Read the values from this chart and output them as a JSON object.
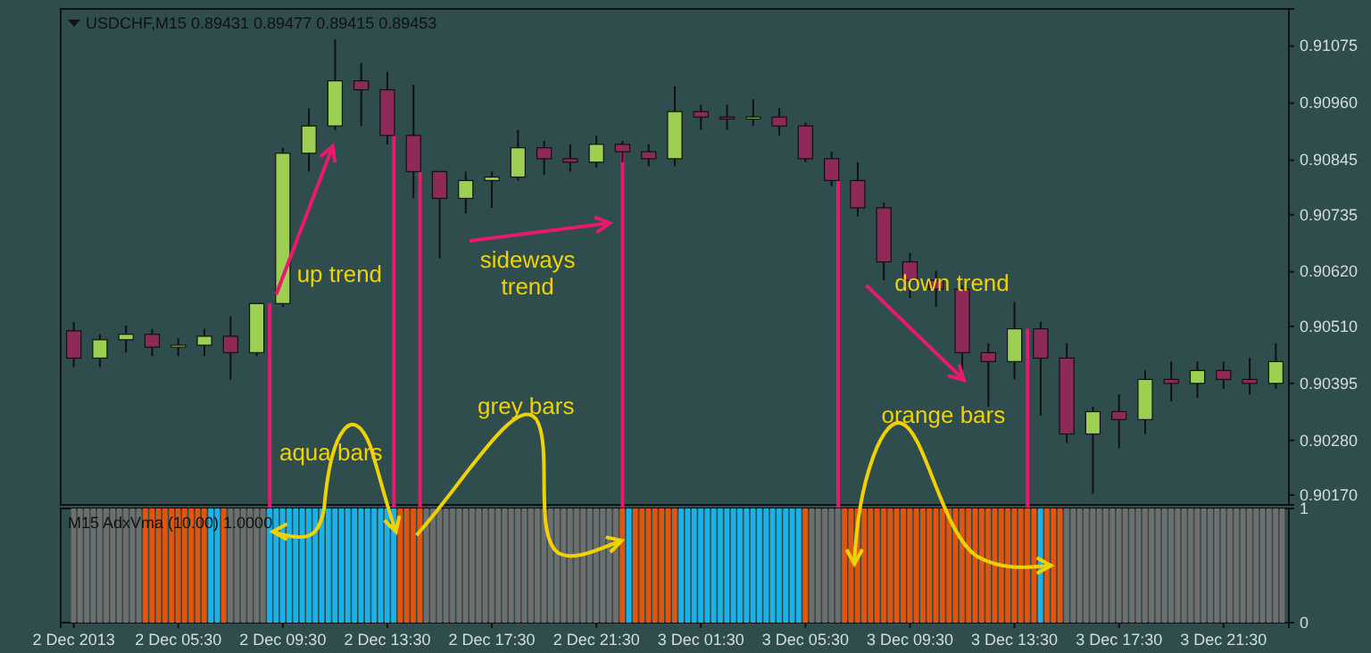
{
  "chart_data": [
    {
      "type": "candlestick",
      "title": "USDCHF,M15  0.89431 0.89477 0.89415 0.89453",
      "x": [
        "2013-12-02T01:30",
        "2013-12-02T02:30",
        "2013-12-02T03:30",
        "2013-12-02T04:30",
        "2013-12-02T05:30",
        "2013-12-02T06:30",
        "2013-12-02T07:30",
        "2013-12-02T08:30",
        "2013-12-02T09:30",
        "2013-12-02T10:30",
        "2013-12-02T11:30",
        "2013-12-02T12:30",
        "2013-12-02T13:30",
        "2013-12-02T14:30",
        "2013-12-02T15:30",
        "2013-12-02T16:30",
        "2013-12-02T17:30",
        "2013-12-02T18:30",
        "2013-12-02T19:30",
        "2013-12-02T20:30",
        "2013-12-02T21:30",
        "2013-12-02T22:30",
        "2013-12-02T23:30",
        "2013-12-03T00:30",
        "2013-12-03T01:30",
        "2013-12-03T02:30",
        "2013-12-03T03:30",
        "2013-12-03T04:30",
        "2013-12-03T05:30",
        "2013-12-03T06:30",
        "2013-12-03T07:30",
        "2013-12-03T08:30",
        "2013-12-03T09:30",
        "2013-12-03T10:30",
        "2013-12-03T11:30",
        "2013-12-03T12:30",
        "2013-12-03T13:30",
        "2013-12-03T14:30",
        "2013-12-03T15:30",
        "2013-12-03T16:30",
        "2013-12-03T17:30",
        "2013-12-03T18:30",
        "2013-12-03T19:30",
        "2013-12-03T20:30",
        "2013-12-03T21:30",
        "2013-12-03T22:30",
        "2013-12-03T23:30"
      ],
      "ohlc": [
        [
          0.90501,
          0.90519,
          0.90428,
          0.90446
        ],
        [
          0.90446,
          0.90494,
          0.90428,
          0.90483
        ],
        [
          0.90483,
          0.90512,
          0.90457,
          0.90494
        ],
        [
          0.90494,
          0.90505,
          0.9045,
          0.90468
        ],
        [
          0.90468,
          0.90486,
          0.9045,
          0.90472
        ],
        [
          0.90472,
          0.90505,
          0.9045,
          0.9049
        ],
        [
          0.9049,
          0.9053,
          0.90403,
          0.90457
        ],
        [
          0.90457,
          0.90556,
          0.9045,
          0.90556
        ],
        [
          0.90556,
          0.9087,
          0.90549,
          0.90859
        ],
        [
          0.90859,
          0.9095,
          0.90822,
          0.90914
        ],
        [
          0.90914,
          0.91089,
          0.90906,
          0.91005
        ],
        [
          0.91005,
          0.91041,
          0.90914,
          0.90987
        ],
        [
          0.90987,
          0.91023,
          0.90877,
          0.90895
        ],
        [
          0.90895,
          0.90997,
          0.90768,
          0.90822
        ],
        [
          0.90822,
          0.90822,
          0.90647,
          0.90768
        ],
        [
          0.90768,
          0.90822,
          0.90738,
          0.90804
        ],
        [
          0.90804,
          0.90822,
          0.90749,
          0.90811
        ],
        [
          0.90811,
          0.90906,
          0.90804,
          0.9087
        ],
        [
          0.9087,
          0.90884,
          0.90815,
          0.90848
        ],
        [
          0.90848,
          0.90877,
          0.90822,
          0.90841
        ],
        [
          0.90841,
          0.90895,
          0.9083,
          0.90877
        ],
        [
          0.90877,
          0.90884,
          0.90841,
          0.90862
        ],
        [
          0.90862,
          0.90877,
          0.90833,
          0.90848
        ],
        [
          0.90848,
          0.90994,
          0.90833,
          0.90943
        ],
        [
          0.90943,
          0.90957,
          0.90906,
          0.90932
        ],
        [
          0.90932,
          0.90957,
          0.90906,
          0.90928
        ],
        [
          0.90928,
          0.90968,
          0.90914,
          0.90932
        ],
        [
          0.90932,
          0.9095,
          0.90895,
          0.90914
        ],
        [
          0.90914,
          0.90921,
          0.90841,
          0.90848
        ],
        [
          0.90848,
          0.90862,
          0.90793,
          0.90804
        ],
        [
          0.90804,
          0.90841,
          0.90731,
          0.90749
        ],
        [
          0.90749,
          0.9076,
          0.90603,
          0.9064
        ],
        [
          0.9064,
          0.90658,
          0.90567,
          0.90603
        ],
        [
          0.90603,
          0.90622,
          0.90549,
          0.90585
        ],
        [
          0.90585,
          0.90592,
          0.90421,
          0.90457
        ],
        [
          0.90457,
          0.90476,
          0.90348,
          0.90439
        ],
        [
          0.90439,
          0.90559,
          0.90403,
          0.90505
        ],
        [
          0.90505,
          0.90519,
          0.9033,
          0.90446
        ],
        [
          0.90446,
          0.90476,
          0.90275,
          0.90293
        ],
        [
          0.90293,
          0.90348,
          0.90173,
          0.90338
        ],
        [
          0.90338,
          0.90373,
          0.90264,
          0.90322
        ],
        [
          0.90322,
          0.90421,
          0.90293,
          0.90403
        ],
        [
          0.90403,
          0.90439,
          0.90359,
          0.90395
        ],
        [
          0.90395,
          0.90439,
          0.90366,
          0.90421
        ],
        [
          0.90421,
          0.90439,
          0.90384,
          0.90403
        ],
        [
          0.90403,
          0.90446,
          0.90373,
          0.90395
        ],
        [
          0.90395,
          0.90476,
          0.90384,
          0.90439
        ]
      ],
      "xlim": [
        "2013-12-02T01:00",
        "2013-12-04T00:00"
      ],
      "ylim": [
        0.9015,
        0.9115
      ],
      "yticks": [
        {
          "value": 0.91075,
          "label": "0.91075"
        },
        {
          "value": 0.9096,
          "label": "0.90960"
        },
        {
          "value": 0.90845,
          "label": "0.90845"
        },
        {
          "value": 0.90735,
          "label": "0.90735"
        },
        {
          "value": 0.9062,
          "label": "0.90620"
        },
        {
          "value": 0.9051,
          "label": "0.90510"
        },
        {
          "value": 0.90395,
          "label": "0.90395"
        },
        {
          "value": 0.9028,
          "label": "0.90280"
        },
        {
          "value": 0.9017,
          "label": "0.90170"
        }
      ],
      "tick_labels": "y",
      "annotations": [
        "up trend",
        "sideways trend",
        "down trend",
        "aqua bars",
        "grey bars",
        "orange bars"
      ],
      "ref_lines": [
        {
          "axis": "x",
          "value": "2013-12-02T09:00",
          "color": "#e8196e"
        },
        {
          "axis": "x",
          "value": "2013-12-02T13:45",
          "color": "#e8196e"
        },
        {
          "axis": "x",
          "value": "2013-12-02T14:45",
          "color": "#e8196e"
        },
        {
          "axis": "x",
          "value": "2013-12-02T22:30",
          "color": "#e8196e"
        },
        {
          "axis": "x",
          "value": "2013-12-03T06:45",
          "color": "#e8196e"
        },
        {
          "axis": "x",
          "value": "2013-12-03T14:00",
          "color": "#e8196e"
        }
      ]
    },
    {
      "type": "bar",
      "title": "M15 AdxVma (10.00) 1.0000",
      "x": [
        "2013-12-02T01:30",
        "2013-12-02T01:45",
        "2013-12-02T02:00",
        "2013-12-02T02:15",
        "2013-12-02T02:30",
        "2013-12-02T02:45",
        "2013-12-02T03:00",
        "2013-12-02T03:15",
        "2013-12-02T03:30",
        "2013-12-02T03:45",
        "2013-12-02T04:00",
        "2013-12-02T04:15",
        "2013-12-02T04:30",
        "2013-12-02T04:45",
        "2013-12-02T05:00",
        "2013-12-02T05:15",
        "2013-12-02T05:30",
        "2013-12-02T05:45",
        "2013-12-02T06:00",
        "2013-12-02T06:15",
        "2013-12-02T06:30",
        "2013-12-02T06:45",
        "2013-12-02T07:00",
        "2013-12-02T07:15",
        "2013-12-02T07:30",
        "2013-12-02T07:45",
        "2013-12-02T08:00",
        "2013-12-02T08:15",
        "2013-12-02T08:30",
        "2013-12-02T08:45",
        "2013-12-02T09:00",
        "2013-12-02T09:15",
        "2013-12-02T09:30",
        "2013-12-02T09:45",
        "2013-12-02T10:00",
        "2013-12-02T10:15",
        "2013-12-02T10:30",
        "2013-12-02T10:45",
        "2013-12-02T11:00",
        "2013-12-02T11:15",
        "2013-12-02T11:30",
        "2013-12-02T11:45",
        "2013-12-02T12:00",
        "2013-12-02T12:15",
        "2013-12-02T12:30",
        "2013-12-02T12:45",
        "2013-12-02T13:00",
        "2013-12-02T13:15",
        "2013-12-02T13:30",
        "2013-12-02T13:45",
        "2013-12-02T14:00",
        "2013-12-02T14:15",
        "2013-12-02T14:30",
        "2013-12-02T14:45",
        "2013-12-02T15:00",
        "2013-12-02T15:15",
        "2013-12-02T15:30",
        "2013-12-02T15:45",
        "2013-12-02T16:00",
        "2013-12-02T16:15",
        "2013-12-02T16:30",
        "2013-12-02T16:45",
        "2013-12-02T17:00",
        "2013-12-02T17:15",
        "2013-12-02T17:30",
        "2013-12-02T17:45",
        "2013-12-02T18:00",
        "2013-12-02T18:15",
        "2013-12-02T18:30",
        "2013-12-02T18:45",
        "2013-12-02T19:00",
        "2013-12-02T19:15",
        "2013-12-02T19:30",
        "2013-12-02T19:45",
        "2013-12-02T20:00",
        "2013-12-02T20:15",
        "2013-12-02T20:30",
        "2013-12-02T20:45",
        "2013-12-02T21:00",
        "2013-12-02T21:15",
        "2013-12-02T21:30",
        "2013-12-02T21:45",
        "2013-12-02T22:00",
        "2013-12-02T22:15",
        "2013-12-02T22:30",
        "2013-12-02T22:45",
        "2013-12-02T23:00",
        "2013-12-02T23:15",
        "2013-12-02T23:30",
        "2013-12-02T23:45",
        "2013-12-03T00:00",
        "2013-12-03T00:15",
        "2013-12-03T00:30",
        "2013-12-03T00:45",
        "2013-12-03T01:00",
        "2013-12-03T01:15",
        "2013-12-03T01:30",
        "2013-12-03T01:45",
        "2013-12-03T02:00",
        "2013-12-03T02:15",
        "2013-12-03T02:30",
        "2013-12-03T02:45",
        "2013-12-03T03:00",
        "2013-12-03T03:15",
        "2013-12-03T03:30",
        "2013-12-03T03:45",
        "2013-12-03T04:00",
        "2013-12-03T04:15",
        "2013-12-03T04:30",
        "2013-12-03T04:45",
        "2013-12-03T05:00",
        "2013-12-03T05:15",
        "2013-12-03T05:30",
        "2013-12-03T05:45",
        "2013-12-03T06:00",
        "2013-12-03T06:15",
        "2013-12-03T06:30",
        "2013-12-03T06:45",
        "2013-12-03T07:00",
        "2013-12-03T07:15",
        "2013-12-03T07:30",
        "2013-12-03T07:45",
        "2013-12-03T08:00",
        "2013-12-03T08:15",
        "2013-12-03T08:30",
        "2013-12-03T08:45",
        "2013-12-03T09:00",
        "2013-12-03T09:15",
        "2013-12-03T09:30",
        "2013-12-03T09:45",
        "2013-12-03T10:00",
        "2013-12-03T10:15",
        "2013-12-03T10:30",
        "2013-12-03T10:45",
        "2013-12-03T11:00",
        "2013-12-03T11:15",
        "2013-12-03T11:30",
        "2013-12-03T11:45",
        "2013-12-03T12:00",
        "2013-12-03T12:15",
        "2013-12-03T12:30",
        "2013-12-03T12:45",
        "2013-12-03T13:00",
        "2013-12-03T13:15",
        "2013-12-03T13:30",
        "2013-12-03T13:45",
        "2013-12-03T14:00",
        "2013-12-03T14:15",
        "2013-12-03T14:30",
        "2013-12-03T14:45",
        "2013-12-03T15:00",
        "2013-12-03T15:15",
        "2013-12-03T15:30",
        "2013-12-03T15:45",
        "2013-12-03T16:00",
        "2013-12-03T16:15",
        "2013-12-03T16:30",
        "2013-12-03T16:45",
        "2013-12-03T17:00",
        "2013-12-03T17:15",
        "2013-12-03T17:30",
        "2013-12-03T17:45",
        "2013-12-03T18:00",
        "2013-12-03T18:15",
        "2013-12-03T18:30",
        "2013-12-03T18:45",
        "2013-12-03T19:00",
        "2013-12-03T19:15",
        "2013-12-03T19:30",
        "2013-12-03T19:45",
        "2013-12-03T20:00",
        "2013-12-03T20:15",
        "2013-12-03T20:30",
        "2013-12-03T20:45",
        "2013-12-03T21:00",
        "2013-12-03T21:15",
        "2013-12-03T21:30",
        "2013-12-03T21:45",
        "2013-12-03T22:00",
        "2013-12-03T22:15",
        "2013-12-03T22:30",
        "2013-12-03T22:45",
        "2013-12-03T23:00",
        "2013-12-03T23:15",
        "2013-12-03T23:30",
        "2013-12-03T23:45"
      ],
      "values": [
        1,
        1,
        1,
        1,
        1,
        1,
        1,
        1,
        1,
        1,
        1,
        1,
        1,
        1,
        1,
        1,
        1,
        1,
        1,
        1,
        1,
        1,
        1,
        1,
        1,
        1,
        1,
        1,
        1,
        1,
        1,
        1,
        1,
        1,
        1,
        1,
        1,
        1,
        1,
        1,
        1,
        1,
        1,
        1,
        1,
        1,
        1,
        1,
        1,
        1,
        1,
        1,
        1,
        1,
        1,
        1,
        1,
        1,
        1,
        1,
        1,
        1,
        1,
        1,
        1,
        1,
        1,
        1,
        1,
        1,
        1,
        1,
        1,
        1,
        1,
        1,
        1,
        1,
        1,
        1,
        1,
        1,
        1,
        1,
        1,
        1,
        1,
        1,
        1,
        1,
        1,
        1,
        1,
        1,
        1,
        1,
        1,
        1,
        1,
        1,
        1,
        1,
        1,
        1,
        1,
        1,
        1,
        1,
        1,
        1,
        1,
        1,
        1,
        1,
        1,
        1,
        1,
        1,
        1,
        1,
        1,
        1,
        1,
        1,
        1,
        1,
        1,
        1,
        1,
        1,
        1,
        1,
        1,
        1,
        1,
        1,
        1,
        1,
        1,
        1,
        1,
        1,
        1,
        1,
        1,
        1,
        1,
        1,
        1,
        1,
        1,
        1,
        1,
        1,
        1,
        1,
        1,
        1,
        1,
        1,
        1,
        1,
        1,
        1,
        1,
        1,
        1,
        1,
        1,
        1,
        1,
        1,
        1,
        1,
        1,
        1,
        1,
        1,
        1,
        1,
        1,
        1,
        1,
        1,
        1,
        1
      ],
      "colors": [
        "#6e6e6e",
        "#6e6e6e",
        "#6e6e6e",
        "#6e6e6e",
        "#6e6e6e",
        "#6e6e6e",
        "#6e6e6e",
        "#6e6e6e",
        "#6e6e6e",
        "#6e6e6e",
        "#6e6e6e",
        "#e1550f",
        "#e1550f",
        "#e1550f",
        "#e1550f",
        "#e1550f",
        "#e1550f",
        "#e1550f",
        "#e1550f",
        "#e1550f",
        "#e1550f",
        "#1ab2e8",
        "#1ab2e8",
        "#e1550f",
        "#6e6e6e",
        "#6e6e6e",
        "#6e6e6e",
        "#6e6e6e",
        "#6e6e6e",
        "#6e6e6e",
        "#1ab2e8",
        "#1ab2e8",
        "#1ab2e8",
        "#1ab2e8",
        "#1ab2e8",
        "#1ab2e8",
        "#1ab2e8",
        "#1ab2e8",
        "#1ab2e8",
        "#1ab2e8",
        "#1ab2e8",
        "#1ab2e8",
        "#1ab2e8",
        "#1ab2e8",
        "#1ab2e8",
        "#1ab2e8",
        "#1ab2e8",
        "#1ab2e8",
        "#1ab2e8",
        "#1ab2e8",
        "#e1550f",
        "#e1550f",
        "#e1550f",
        "#e1550f",
        "#6e6e6e",
        "#6e6e6e",
        "#6e6e6e",
        "#6e6e6e",
        "#6e6e6e",
        "#6e6e6e",
        "#6e6e6e",
        "#6e6e6e",
        "#6e6e6e",
        "#6e6e6e",
        "#6e6e6e",
        "#6e6e6e",
        "#6e6e6e",
        "#6e6e6e",
        "#6e6e6e",
        "#6e6e6e",
        "#6e6e6e",
        "#6e6e6e",
        "#6e6e6e",
        "#6e6e6e",
        "#6e6e6e",
        "#6e6e6e",
        "#6e6e6e",
        "#6e6e6e",
        "#6e6e6e",
        "#6e6e6e",
        "#6e6e6e",
        "#6e6e6e",
        "#6e6e6e",
        "#6e6e6e",
        "#e1550f",
        "#1ab2e8",
        "#e1550f",
        "#e1550f",
        "#e1550f",
        "#e1550f",
        "#e1550f",
        "#e1550f",
        "#e1550f",
        "#1ab2e8",
        "#1ab2e8",
        "#1ab2e8",
        "#1ab2e8",
        "#1ab2e8",
        "#1ab2e8",
        "#1ab2e8",
        "#1ab2e8",
        "#1ab2e8",
        "#1ab2e8",
        "#1ab2e8",
        "#1ab2e8",
        "#1ab2e8",
        "#1ab2e8",
        "#1ab2e8",
        "#1ab2e8",
        "#1ab2e8",
        "#1ab2e8",
        "#1ab2e8",
        "#e1550f",
        "#6e6e6e",
        "#6e6e6e",
        "#6e6e6e",
        "#6e6e6e",
        "#6e6e6e",
        "#e1550f",
        "#e1550f",
        "#e1550f",
        "#e1550f",
        "#e1550f",
        "#e1550f",
        "#e1550f",
        "#e1550f",
        "#e1550f",
        "#e1550f",
        "#e1550f",
        "#e1550f",
        "#e1550f",
        "#e1550f",
        "#e1550f",
        "#e1550f",
        "#e1550f",
        "#e1550f",
        "#e1550f",
        "#e1550f",
        "#e1550f",
        "#e1550f",
        "#e1550f",
        "#e1550f",
        "#e1550f",
        "#e1550f",
        "#e1550f",
        "#e1550f",
        "#e1550f",
        "#e1550f",
        "#1ab2e8",
        "#e1550f",
        "#e1550f",
        "#e1550f",
        "#6e6e6e",
        "#6e6e6e",
        "#6e6e6e",
        "#6e6e6e",
        "#6e6e6e",
        "#6e6e6e",
        "#6e6e6e",
        "#6e6e6e",
        "#6e6e6e",
        "#6e6e6e",
        "#6e6e6e",
        "#6e6e6e",
        "#6e6e6e",
        "#6e6e6e",
        "#6e6e6e",
        "#6e6e6e",
        "#6e6e6e",
        "#6e6e6e",
        "#6e6e6e",
        "#6e6e6e",
        "#6e6e6e",
        "#6e6e6e",
        "#6e6e6e",
        "#6e6e6e",
        "#6e6e6e",
        "#6e6e6e",
        "#6e6e6e",
        "#6e6e6e",
        "#6e6e6e",
        "#6e6e6e",
        "#6e6e6e",
        "#6e6e6e",
        "#6e6e6e",
        "#6e6e6e"
      ],
      "xlim": [
        "2013-12-02T01:00",
        "2013-12-04T00:00"
      ],
      "xticks": [
        {
          "value": "2013-12-02T01:30",
          "label": "2 Dec 2013"
        },
        {
          "value": "2013-12-02T05:30",
          "label": "2 Dec 05:30"
        },
        {
          "value": "2013-12-02T09:30",
          "label": "2 Dec 09:30"
        },
        {
          "value": "2013-12-02T13:30",
          "label": "2 Dec 13:30"
        },
        {
          "value": "2013-12-02T17:30",
          "label": "2 Dec 17:30"
        },
        {
          "value": "2013-12-02T21:30",
          "label": "2 Dec 21:30"
        },
        {
          "value": "2013-12-03T01:30",
          "label": "3 Dec 01:30"
        },
        {
          "value": "2013-12-03T05:30",
          "label": "3 Dec 05:30"
        },
        {
          "value": "2013-12-03T09:30",
          "label": "3 Dec 09:30"
        },
        {
          "value": "2013-12-03T13:30",
          "label": "3 Dec 13:30"
        },
        {
          "value": "2013-12-03T17:30",
          "label": "3 Dec 17:30"
        },
        {
          "value": "2013-12-03T21:30",
          "label": "3 Dec 21:30"
        }
      ],
      "ylim": [
        0,
        1
      ],
      "yticks": [
        0,
        1
      ]
    }
  ]
}
